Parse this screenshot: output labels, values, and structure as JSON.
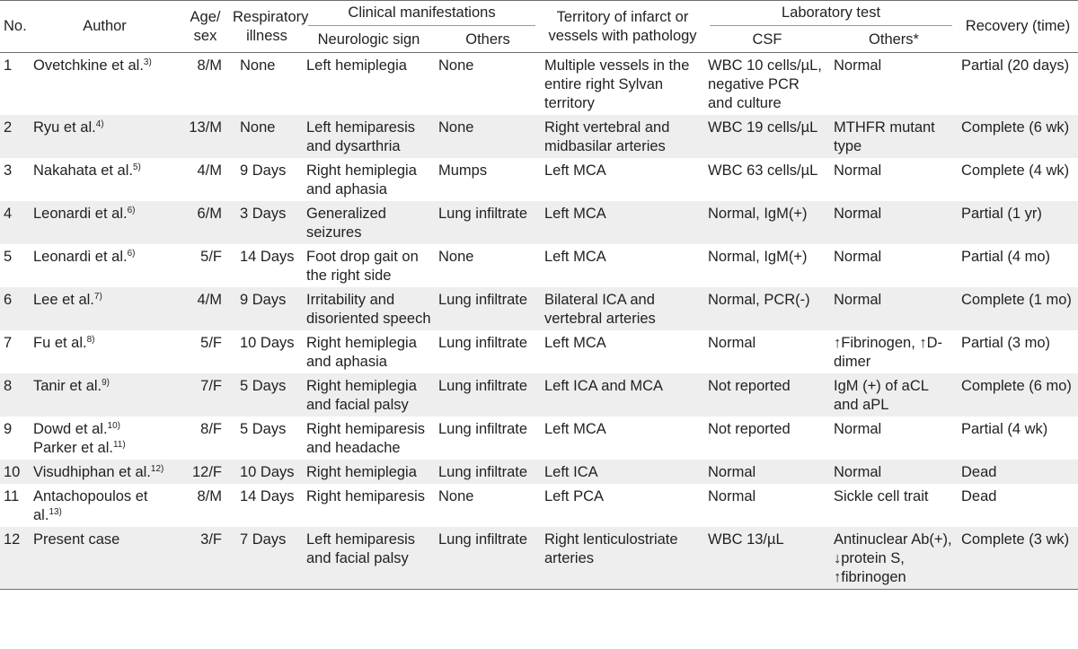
{
  "headers": {
    "no": "No.",
    "author": "Author",
    "age_sex": [
      "Age/",
      "sex"
    ],
    "respiratory": [
      "Respiratory",
      "illness"
    ],
    "clinical": "Clinical manifestations",
    "neurologic": "Neurologic sign",
    "others": "Others",
    "territory": [
      "Territory of infarct or",
      "vessels with pathology"
    ],
    "lab": "Laboratory test",
    "csf": "CSF",
    "lab_others": "Others*",
    "recovery": "Recovery (time)"
  },
  "rows": [
    {
      "no": "1",
      "author": [
        {
          "name": "Ovetchkine et al.",
          "ref": "3)"
        }
      ],
      "age_sex": "8/M",
      "respiratory": "None",
      "neurologic": "Left hemiplegia",
      "others": "None",
      "territory": "Multiple vessels in the entire right Sylvan territory",
      "csf": "WBC 10 cells/µL, negative PCR and culture",
      "lab_others": "Normal",
      "recovery": "Partial (20 days)"
    },
    {
      "no": "2",
      "author": [
        {
          "name": "Ryu et al.",
          "ref": "4)"
        }
      ],
      "age_sex": "13/M",
      "respiratory": "None",
      "neurologic": "Left hemiparesis and dysarthria",
      "others": "None",
      "territory": "Right vertebral and midbasilar arteries",
      "csf": "WBC 19 cells/µL",
      "lab_others": "MTHFR mutant type",
      "recovery": "Complete (6 wk)"
    },
    {
      "no": "3",
      "author": [
        {
          "name": "Nakahata et al.",
          "ref": "5)"
        }
      ],
      "age_sex": "4/M",
      "respiratory": "9 Days",
      "neurologic": "Right hemiplegia and aphasia",
      "others": "Mumps",
      "territory": "Left MCA",
      "csf": "WBC 63 cells/µL",
      "lab_others": "Normal",
      "recovery": "Complete (4 wk)"
    },
    {
      "no": "4",
      "author": [
        {
          "name": "Leonardi et al.",
          "ref": "6)"
        }
      ],
      "age_sex": "6/M",
      "respiratory": "3 Days",
      "neurologic": "Generalized seizures",
      "others": "Lung infiltrate",
      "territory": "Left MCA",
      "csf": "Normal, IgM(+)",
      "lab_others": "Normal",
      "recovery": "Partial (1 yr)"
    },
    {
      "no": "5",
      "author": [
        {
          "name": "Leonardi et al.",
          "ref": "6)"
        }
      ],
      "age_sex": "5/F",
      "respiratory": "14 Days",
      "neurologic": "Foot drop gait on the right side",
      "others": "None",
      "territory": "Left MCA",
      "csf": "Normal, IgM(+)",
      "lab_others": "Normal",
      "recovery": "Partial (4 mo)"
    },
    {
      "no": "6",
      "author": [
        {
          "name": "Lee et al.",
          "ref": "7)"
        }
      ],
      "age_sex": "4/M",
      "respiratory": "9 Days",
      "neurologic": "Irritability and disoriented speech",
      "others": "Lung infiltrate",
      "territory": "Bilateral ICA and vertebral arteries",
      "csf": "Normal, PCR(-)",
      "lab_others": "Normal",
      "recovery": "Complete (1 mo)"
    },
    {
      "no": "7",
      "author": [
        {
          "name": "Fu et al.",
          "ref": "8)"
        }
      ],
      "age_sex": "5/F",
      "respiratory": "10 Days",
      "neurologic": "Right hemiplegia and aphasia",
      "others": "Lung infiltrate",
      "territory": "Left MCA",
      "csf": "Normal",
      "lab_others": "↑Fibrinogen, ↑D-dimer",
      "recovery": "Partial (3 mo)"
    },
    {
      "no": "8",
      "author": [
        {
          "name": "Tanir et al.",
          "ref": "9)"
        }
      ],
      "age_sex": "7/F",
      "respiratory": "5 Days",
      "neurologic": "Right hemiplegia and facial palsy",
      "others": "Lung infiltrate",
      "territory": "Left ICA and MCA",
      "csf": "Not reported",
      "lab_others": "IgM (+) of aCL and aPL",
      "recovery": "Complete (6 mo)"
    },
    {
      "no": "9",
      "author": [
        {
          "name": "Dowd et al.",
          "ref": "10)"
        },
        {
          "name": "Parker et al.",
          "ref": "11)"
        }
      ],
      "age_sex": "8/F",
      "respiratory": "5 Days",
      "neurologic": "Right hemiparesis and headache",
      "others": "Lung infiltrate",
      "territory": "Left MCA",
      "csf": "Not reported",
      "lab_others": "Normal",
      "recovery": "Partial (4 wk)"
    },
    {
      "no": "10",
      "author": [
        {
          "name": "Visudhiphan et al.",
          "ref": "12)"
        }
      ],
      "age_sex": "12/F",
      "respiratory": "10 Days",
      "neurologic": "Right hemiplegia",
      "others": "Lung infiltrate",
      "territory": "Left ICA",
      "csf": "Normal",
      "lab_others": "Normal",
      "recovery": "Dead"
    },
    {
      "no": "11",
      "author": [
        {
          "name": "Antachopoulos et al.",
          "ref": "13)"
        }
      ],
      "age_sex": "8/M",
      "respiratory": "14 Days",
      "neurologic": "Right hemiparesis",
      "others": "None",
      "territory": "Left PCA",
      "csf": "Normal",
      "lab_others": "Sickle cell trait",
      "recovery": "Dead"
    },
    {
      "no": "12",
      "author": [
        {
          "name": "Present case",
          "ref": ""
        }
      ],
      "age_sex": "3/F",
      "respiratory": "7 Days",
      "neurologic": "Left hemiparesis and facial palsy",
      "others": "Lung infiltrate",
      "territory": "Right lenticulostriate arteries",
      "csf": "WBC 13/µL",
      "lab_others": "Antinuclear Ab(+), ↓protein S, ↑fibrinogen",
      "recovery": "Complete (3 wk)"
    }
  ]
}
